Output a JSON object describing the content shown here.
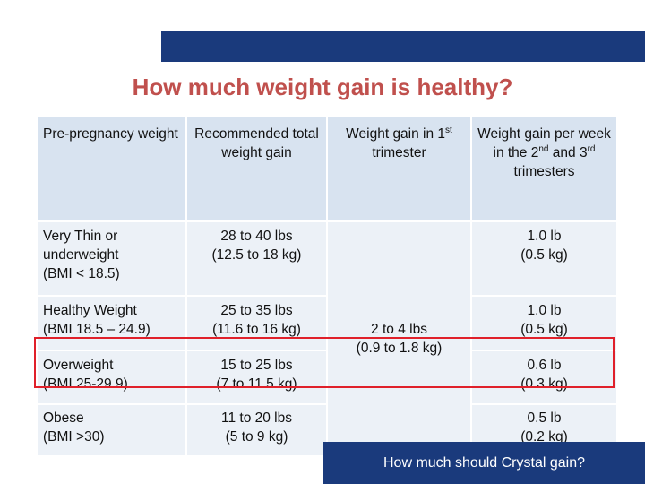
{
  "slide": {
    "title": "How much weight gain is healthy?",
    "footer_question": "How much should Crystal gain?",
    "colors": {
      "title": "#c0504d",
      "bar": "#1a3a7c",
      "header_bg": "#d8e3f0",
      "row_bg": "#ecf1f7",
      "highlight_border": "#e0202a"
    }
  },
  "table": {
    "headers": {
      "col1": "Pre-pregnancy weight",
      "col2": "Recommended total weight gain",
      "col3_pre": "Weight gain in 1",
      "col3_sup": "st",
      "col3_post": " trimester",
      "col4_pre": "Weight gain per week in the 2",
      "col4_sup1": "nd",
      "col4_mid": " and 3",
      "col4_sup2": "rd",
      "col4_post": " trimesters"
    },
    "first_trimester_all": {
      "line1": "2 to 4 lbs",
      "line2": "(0.9 to 1.8 kg)"
    },
    "rows": [
      {
        "category_line1": "Very Thin or",
        "category_line2": "underweight",
        "category_line3": "(BMI < 18.5)",
        "total_line1": "28 to 40 lbs",
        "total_line2": "(12.5 to 18 kg)",
        "per_week_line1": "1.0 lb",
        "per_week_line2": "(0.5 kg)"
      },
      {
        "category_line1": "Healthy Weight",
        "category_line2": "(BMI 18.5 – 24.9)",
        "total_line1": "25 to 35 lbs",
        "total_line2": "(11.6 to 16 kg)",
        "per_week_line1": "1.0 lb",
        "per_week_line2": "(0.5 kg)"
      },
      {
        "category_line1": "Overweight",
        "category_line2": "(BMI 25-29.9)",
        "total_line1": "15 to 25 lbs",
        "total_line2": "(7 to 11.5 kg)",
        "per_week_line1": "0.6 lb",
        "per_week_line2": "(0.3 kg)",
        "highlighted": true
      },
      {
        "category_line1": "Obese",
        "category_line2": "(BMI >30)",
        "total_line1": "11 to 20 lbs",
        "total_line2": "(5 to 9 kg)",
        "per_week_line1": "0.5 lb",
        "per_week_line2": "(0.2 kg)"
      }
    ]
  }
}
